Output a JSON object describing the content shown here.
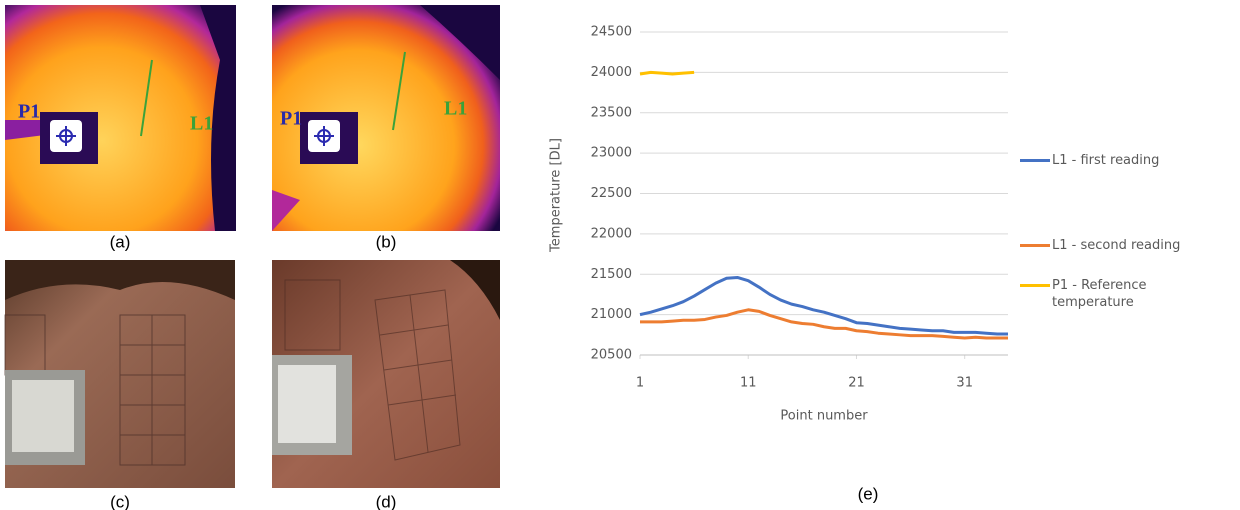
{
  "panels": [
    {
      "label": "(a)",
      "overlays": [
        "P1",
        "L1"
      ]
    },
    {
      "label": "(b)",
      "overlays": [
        "P1",
        "L1"
      ]
    },
    {
      "label": "(c)"
    },
    {
      "label": "(d)"
    }
  ],
  "chart_data": {
    "type": "line",
    "panel_label": "(e)",
    "y_label": "Temperature [DL]",
    "x_label": "Point number",
    "x": [
      1,
      2,
      3,
      4,
      5,
      6,
      7,
      8,
      9,
      10,
      11,
      12,
      13,
      14,
      15,
      16,
      17,
      18,
      19,
      20,
      21,
      22,
      23,
      24,
      25,
      26,
      27,
      28,
      29,
      30,
      31,
      32,
      33,
      34,
      35
    ],
    "xlim": [
      1,
      35
    ],
    "xticks": [
      1,
      11,
      21,
      31
    ],
    "ylim": [
      20500,
      24500
    ],
    "yticks": [
      20500,
      21000,
      21500,
      22000,
      22500,
      23000,
      23500,
      24000,
      24500
    ],
    "grid": true,
    "legend": "right",
    "series": [
      {
        "name": "L1 - first reading",
        "color": "#4472c4",
        "values": [
          21000,
          21030,
          21070,
          21110,
          21160,
          21230,
          21310,
          21390,
          21450,
          21460,
          21420,
          21340,
          21250,
          21180,
          21130,
          21100,
          21060,
          21030,
          20990,
          20950,
          20900,
          20890,
          20870,
          20850,
          20830,
          20820,
          20810,
          20800,
          20800,
          20780,
          20780,
          20780,
          20770,
          20760,
          20760
        ]
      },
      {
        "name": "L1 - second reading",
        "color": "#ed7d31",
        "values": [
          20910,
          20910,
          20910,
          20920,
          20930,
          20930,
          20940,
          20970,
          20990,
          21030,
          21060,
          21040,
          20990,
          20950,
          20910,
          20890,
          20880,
          20850,
          20830,
          20830,
          20800,
          20790,
          20770,
          20760,
          20750,
          20740,
          20740,
          20740,
          20730,
          20720,
          20710,
          20720,
          20710,
          20710,
          20710
        ]
      },
      {
        "name": "P1 - Reference temperature",
        "color": "#ffc000",
        "values": [
          23980,
          24000,
          23990,
          23980,
          23990,
          24000,
          null,
          null,
          null,
          null,
          null,
          null,
          null,
          null,
          null,
          null,
          null,
          null,
          null,
          null,
          null,
          null,
          null,
          null,
          null,
          null,
          null,
          null,
          null,
          null,
          null,
          null,
          null,
          null,
          null
        ]
      }
    ]
  }
}
